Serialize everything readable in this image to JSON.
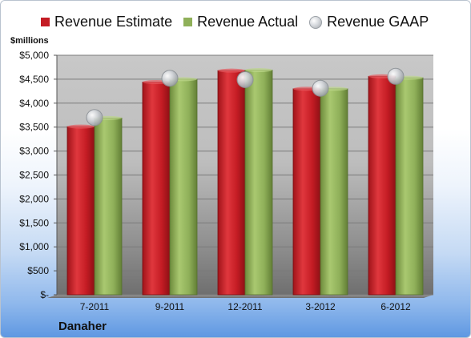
{
  "legend": {
    "estimate": "Revenue Estimate",
    "actual": "Revenue Actual",
    "gaap": "Revenue GAAP"
  },
  "unit_label": "$millions",
  "company_label": "Danaher",
  "colors": {
    "estimate": "#c41c24",
    "actual": "#8fb059",
    "gaap": "#c8ccd0"
  },
  "chart_data": {
    "type": "bar",
    "categories": [
      "7-2011",
      "9-2011",
      "12-2011",
      "3-2012",
      "6-2012"
    ],
    "series": [
      {
        "name": "Revenue Estimate",
        "values": [
          3510,
          4440,
          4680,
          4300,
          4560
        ]
      },
      {
        "name": "Revenue Actual",
        "values": [
          3690,
          4500,
          4690,
          4300,
          4530
        ]
      },
      {
        "name": "Revenue GAAP",
        "values": [
          3700,
          4520,
          4490,
          4310,
          4560
        ]
      }
    ],
    "ylim": [
      0,
      5000
    ],
    "y_ticks": [
      {
        "value": 0,
        "label": "$-"
      },
      {
        "value": 500,
        "label": "$500"
      },
      {
        "value": 1000,
        "label": "$1,000"
      },
      {
        "value": 1500,
        "label": "$1,500"
      },
      {
        "value": 2000,
        "label": "$2,000"
      },
      {
        "value": 2500,
        "label": "$2,500"
      },
      {
        "value": 3000,
        "label": "$3,000"
      },
      {
        "value": 3500,
        "label": "$3,500"
      },
      {
        "value": 4000,
        "label": "$4,000"
      },
      {
        "value": 4500,
        "label": "$4,500"
      },
      {
        "value": 5000,
        "label": "$5,000"
      }
    ],
    "grid": true,
    "legend_position": "top"
  }
}
